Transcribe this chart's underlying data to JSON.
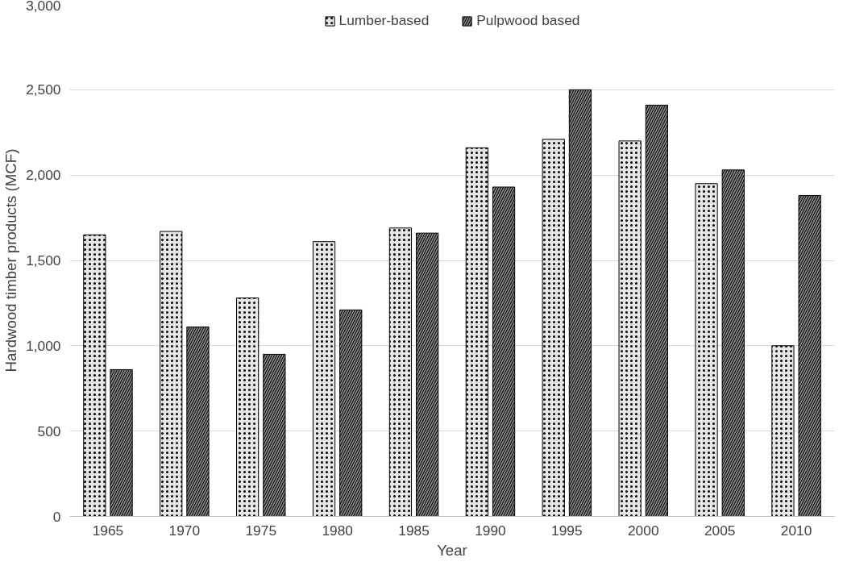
{
  "chart_data": {
    "type": "bar",
    "xlabel": "Year",
    "ylabel": "Hardwood timber products (MCF)",
    "categories": [
      "1965",
      "1970",
      "1975",
      "1980",
      "1985",
      "1990",
      "1995",
      "2000",
      "2005",
      "2010"
    ],
    "series": [
      {
        "name": "Lumber-based",
        "color": "#e6e6e6",
        "values": [
          1650,
          1670,
          1280,
          1610,
          1690,
          2160,
          2210,
          2200,
          1950,
          1000
        ]
      },
      {
        "name": "Pulpwood based",
        "color": "#808080",
        "values": [
          860,
          1110,
          950,
          1210,
          1660,
          1930,
          2500,
          2410,
          2030,
          1880
        ]
      }
    ],
    "ylim": [
      0,
      3000
    ],
    "yticks": [
      {
        "value": 0,
        "label": "0"
      },
      {
        "value": 500,
        "label": "500"
      },
      {
        "value": 1000,
        "label": "1,000"
      },
      {
        "value": 1500,
        "label": "1,500"
      },
      {
        "value": 2000,
        "label": "2,000"
      },
      {
        "value": 2500,
        "label": "2,500"
      },
      {
        "value": 3000,
        "label": "3,000"
      }
    ],
    "grid": "y",
    "legend": "top"
  }
}
